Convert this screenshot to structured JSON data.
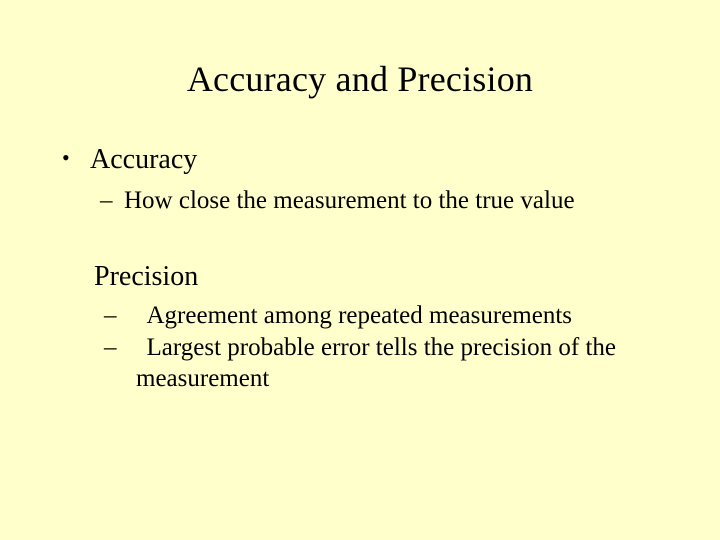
{
  "slide": {
    "background_color": "#ffffcc",
    "text_color": "#000000",
    "font_family": "Times New Roman",
    "title": "Accuracy and Precision",
    "title_fontsize": 36,
    "body_fontsize_lvl1": 28,
    "body_fontsize_lvl2": 25,
    "bullet_glyph": "•",
    "dash_glyph": "–",
    "sections": [
      {
        "heading": "Accuracy",
        "items": [
          "How close the measurement to the true value"
        ]
      },
      {
        "heading": "Precision",
        "items": [
          "Agreement among repeated measurements",
          "Largest probable error  tells the precision of the measurement"
        ]
      }
    ]
  }
}
